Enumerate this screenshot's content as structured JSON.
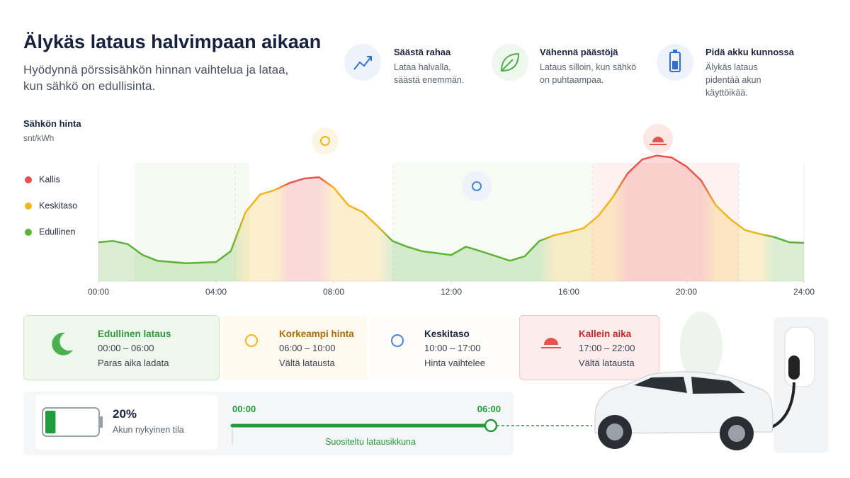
{
  "header": {
    "title": "Älykäs lataus halvimpaan aikaan",
    "subtitle": "Hyödynnä pörssisähkön hinnan vaihtelua ja lataa, kun sähkö on edullisinta."
  },
  "features": [
    {
      "title": "Säästä rahaa",
      "text": "Lataa halvalla, säästä enemmän."
    },
    {
      "title": "Vähennä päästöjä",
      "text": "Lataus silloin, kun sähkö on puhtaampaa."
    },
    {
      "title": "Pidä akku kunnossa",
      "text": "Älykäs lataus pidentää akun käyttöikää."
    }
  ],
  "chart_data": {
    "type": "area",
    "title": "Sähkön hinta",
    "y_label": "snt/kWh",
    "legend": [
      {
        "label": "Kallis",
        "color": "#e9534f"
      },
      {
        "label": "Keskitaso",
        "color": "#f2b51d"
      },
      {
        "label": "Edullinen",
        "color": "#5cb338"
      }
    ],
    "x": [
      0,
      0.5,
      1,
      1.5,
      2,
      3,
      4,
      4.5,
      5,
      5.5,
      6,
      6.5,
      7,
      7.5,
      8,
      8.5,
      9,
      9.5,
      10,
      10.5,
      11,
      12,
      12.5,
      13,
      14,
      14.5,
      15,
      15.5,
      16,
      16.5,
      17,
      17.5,
      18,
      18.5,
      19,
      19.5,
      20,
      20.5,
      21,
      21.5,
      22,
      22.5,
      23,
      23.5,
      24
    ],
    "values": [
      6.1,
      6.3,
      5.8,
      4.1,
      3.2,
      2.8,
      3.0,
      4.7,
      10.8,
      13.6,
      14.3,
      15.4,
      16.1,
      16.3,
      14.7,
      11.9,
      10.8,
      8.6,
      6.3,
      5.4,
      4.7,
      4.1,
      5.4,
      4.7,
      3.2,
      3.9,
      6.3,
      7.2,
      7.7,
      8.3,
      10.2,
      13.2,
      16.9,
      19.1,
      19.7,
      19.4,
      18.0,
      15.8,
      11.9,
      9.7,
      8.0,
      7.4,
      6.9,
      6.1,
      6.0
    ],
    "xlim": [
      0,
      24
    ],
    "ylim": [
      0,
      20
    ],
    "xticks": [
      {
        "value": 0,
        "label": "00:00"
      },
      {
        "value": 4,
        "label": "04:00"
      },
      {
        "value": 8,
        "label": "08:00"
      },
      {
        "value": 12,
        "label": "12:00"
      },
      {
        "value": 16,
        "label": "16:00"
      },
      {
        "value": 20,
        "label": "20:00"
      },
      {
        "value": 24,
        "label": "24:00"
      }
    ]
  },
  "periods": [
    {
      "title": "Edullinen lataus",
      "time": "00:00 – 06:00",
      "note": "Paras aika ladata"
    },
    {
      "title": "Korkeampi hinta",
      "time": "06:00 – 10:00",
      "note": "Vältä latausta"
    },
    {
      "title": "Keskitaso",
      "time": "10:00 – 17:00",
      "note": "Hinta vaihtelee"
    },
    {
      "title": "Kallein aika",
      "time": "17:00 – 22:00",
      "note": "Vältä latausta"
    }
  ],
  "battery": {
    "value": 20,
    "label": "20%",
    "caption": "Akun nykyinen tila"
  },
  "window": {
    "start": "00:00",
    "end": "06:00",
    "label": "Suositeltu latausikkuna"
  }
}
